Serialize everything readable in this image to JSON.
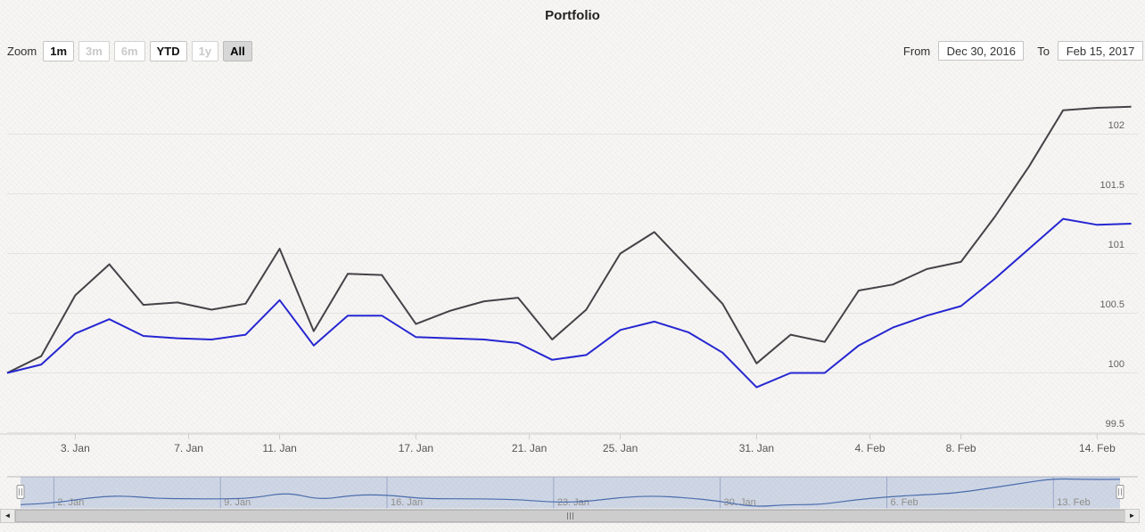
{
  "title": "Portfolio",
  "range_selector": {
    "zoom_label": "Zoom",
    "buttons": [
      {
        "label": "1m",
        "state": "enabled"
      },
      {
        "label": "3m",
        "state": "disabled"
      },
      {
        "label": "6m",
        "state": "disabled"
      },
      {
        "label": "YTD",
        "state": "enabled"
      },
      {
        "label": "1y",
        "state": "disabled"
      },
      {
        "label": "All",
        "state": "selected"
      }
    ],
    "from_label": "From",
    "from_value": "Dec 30, 2016",
    "to_label": "To",
    "to_value": "Feb 15, 2017"
  },
  "chart_data": {
    "type": "line",
    "title": "Portfolio",
    "x_dates": [
      "2016-12-30",
      "2017-01-02",
      "2017-01-03",
      "2017-01-04",
      "2017-01-05",
      "2017-01-06",
      "2017-01-09",
      "2017-01-10",
      "2017-01-11",
      "2017-01-12",
      "2017-01-13",
      "2017-01-16",
      "2017-01-17",
      "2017-01-18",
      "2017-01-19",
      "2017-01-20",
      "2017-01-23",
      "2017-01-24",
      "2017-01-25",
      "2017-01-26",
      "2017-01-27",
      "2017-01-30",
      "2017-01-31",
      "2017-02-01",
      "2017-02-02",
      "2017-02-03",
      "2017-02-06",
      "2017-02-07",
      "2017-02-08",
      "2017-02-09",
      "2017-02-10",
      "2017-02-13",
      "2017-02-14",
      "2017-02-15"
    ],
    "series": [
      {
        "name": "dark",
        "color": "#434348",
        "values": [
          100.0,
          100.14,
          100.65,
          100.91,
          100.57,
          100.59,
          100.53,
          100.58,
          101.04,
          100.35,
          100.83,
          100.82,
          100.41,
          100.52,
          100.6,
          100.63,
          100.28,
          100.53,
          101.0,
          101.18,
          100.88,
          100.58,
          100.08,
          100.32,
          100.26,
          100.69,
          100.74,
          100.87,
          100.93,
          101.31,
          101.73,
          102.2,
          102.22,
          102.23
        ]
      },
      {
        "name": "blue",
        "color": "#2626d2",
        "values": [
          100.0,
          100.07,
          100.33,
          100.45,
          100.31,
          100.29,
          100.28,
          100.32,
          100.61,
          100.23,
          100.48,
          100.48,
          100.3,
          100.29,
          100.28,
          100.25,
          100.11,
          100.15,
          100.36,
          100.43,
          100.34,
          100.17,
          99.88,
          100.0,
          100.0,
          100.23,
          100.38,
          100.48,
          100.56,
          100.79,
          101.04,
          101.29,
          101.24,
          101.25
        ]
      }
    ],
    "yticks": [
      102,
      101.5,
      101,
      100.5,
      100,
      99.5
    ],
    "ylim": [
      99.4,
      102.35
    ],
    "xticks": [
      {
        "label": "3. Jan",
        "i": 2
      },
      {
        "label": "7. Jan",
        "i": 5.33
      },
      {
        "label": "11. Jan",
        "i": 8
      },
      {
        "label": "17. Jan",
        "i": 12
      },
      {
        "label": "21. Jan",
        "i": 15.33
      },
      {
        "label": "25. Jan",
        "i": 18
      },
      {
        "label": "31. Jan",
        "i": 22
      },
      {
        "label": "4. Feb",
        "i": 25.33
      },
      {
        "label": "8. Feb",
        "i": 28
      },
      {
        "label": "14. Feb",
        "i": 32
      }
    ],
    "grid": true,
    "legend": false
  },
  "navigator": {
    "ticks": [
      {
        "label": "2. Jan",
        "i": 1
      },
      {
        "label": "9. Jan",
        "i": 6
      },
      {
        "label": "16. Jan",
        "i": 11
      },
      {
        "label": "23. Jan",
        "i": 16
      },
      {
        "label": "30. Jan",
        "i": 21
      },
      {
        "label": "6. Feb",
        "i": 26
      },
      {
        "label": "13. Feb",
        "i": 31
      }
    ]
  },
  "scrollbar": {
    "left_arrow": "◄",
    "right_arrow": "►"
  },
  "colors": {
    "series_dark": "#434348",
    "series_blue": "#2626d2",
    "navigator_line": "#4a6dad",
    "navigator_mask": "rgba(104,132,192,0.28)",
    "navigator_grid": "#9aa9c9",
    "grid_line": "#e3e3e1",
    "axis_line": "#cccccc",
    "axis_label": "#55544f",
    "y_label": "#61605e",
    "nav_label": "#8e8d89",
    "selected_button_bg": "#d7d7d7"
  }
}
